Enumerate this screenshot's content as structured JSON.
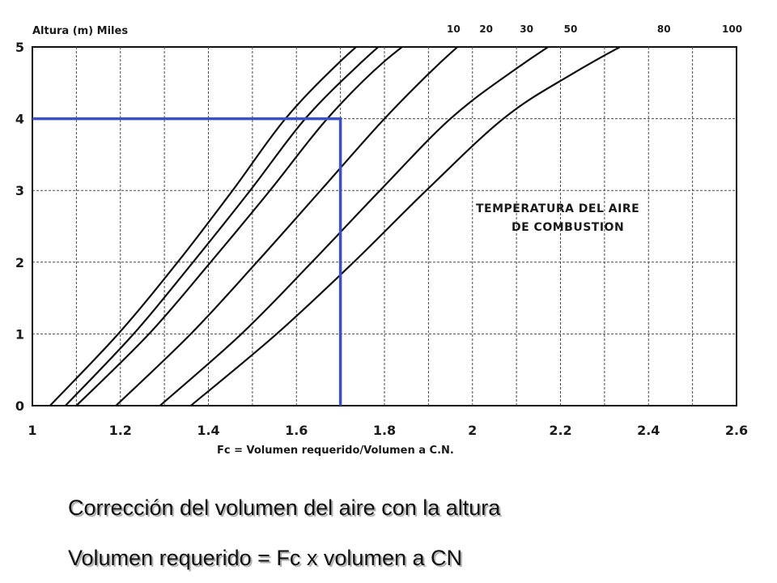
{
  "chart_data": {
    "type": "line",
    "ylabel": "Altura (m) Miles",
    "xlabel": "Fc = Volumen requerido/Volumen a C.N.",
    "xlim": [
      1,
      2.6
    ],
    "ylim": [
      0,
      5
    ],
    "x_ticks": [
      "1",
      "1.2",
      "1.4",
      "1.6",
      "1.8",
      "2",
      "2.2",
      "2.4",
      "2.6"
    ],
    "y_ticks": [
      "0",
      "1",
      "2",
      "3",
      "4",
      "5"
    ],
    "grid": true,
    "series": [
      {
        "name": "10",
        "points": [
          [
            1.04,
            0
          ],
          [
            1.195,
            1
          ],
          [
            1.33,
            2
          ],
          [
            1.455,
            3
          ],
          [
            1.575,
            4
          ],
          [
            1.7,
            4.8
          ],
          [
            1.83,
            5.5
          ]
        ]
      },
      {
        "name": "20",
        "points": [
          [
            1.075,
            0
          ],
          [
            1.23,
            1
          ],
          [
            1.365,
            2
          ],
          [
            1.495,
            3
          ],
          [
            1.62,
            4
          ],
          [
            1.75,
            4.8
          ],
          [
            1.88,
            5.5
          ]
        ]
      },
      {
        "name": "30",
        "points": [
          [
            1.1,
            0
          ],
          [
            1.265,
            1
          ],
          [
            1.405,
            2
          ],
          [
            1.54,
            3
          ],
          [
            1.67,
            4
          ],
          [
            1.8,
            4.8
          ],
          [
            1.95,
            5.5
          ]
        ]
      },
      {
        "name": "50",
        "points": [
          [
            1.19,
            0
          ],
          [
            1.36,
            1
          ],
          [
            1.51,
            2
          ],
          [
            1.655,
            3
          ],
          [
            1.8,
            4
          ],
          [
            1.93,
            4.8
          ],
          [
            2.06,
            5.5
          ]
        ]
      },
      {
        "name": "80",
        "points": [
          [
            1.29,
            0
          ],
          [
            1.475,
            1
          ],
          [
            1.635,
            2
          ],
          [
            1.79,
            3
          ],
          [
            1.95,
            4
          ],
          [
            2.1,
            4.7
          ],
          [
            2.25,
            5.3
          ],
          [
            2.4,
            5.8
          ]
        ]
      },
      {
        "name": "100",
        "points": [
          [
            1.36,
            0
          ],
          [
            1.555,
            1
          ],
          [
            1.73,
            2
          ],
          [
            1.895,
            3
          ],
          [
            2.07,
            4
          ],
          [
            2.22,
            4.6
          ],
          [
            2.4,
            5.2
          ],
          [
            2.58,
            5.65
          ]
        ]
      }
    ],
    "series_labels": [
      {
        "text": "10",
        "x": 1.957
      },
      {
        "text": "20",
        "x": 2.031
      },
      {
        "text": "30",
        "x": 2.123
      },
      {
        "text": "50",
        "x": 2.223
      },
      {
        "text": "80",
        "x": 2.435
      },
      {
        "text": "100",
        "x": 2.59
      }
    ],
    "reference_line": {
      "x": 1.7,
      "y": 4,
      "color": "#3a4fc8"
    },
    "annotation": [
      "TEMPERATURA DEL AIRE",
      "DE COMBUSTION"
    ]
  },
  "captions": {
    "line1": "Corrección del volumen del aire con la altura",
    "line2": "Volumen requerido = Fc x volumen a CN"
  }
}
